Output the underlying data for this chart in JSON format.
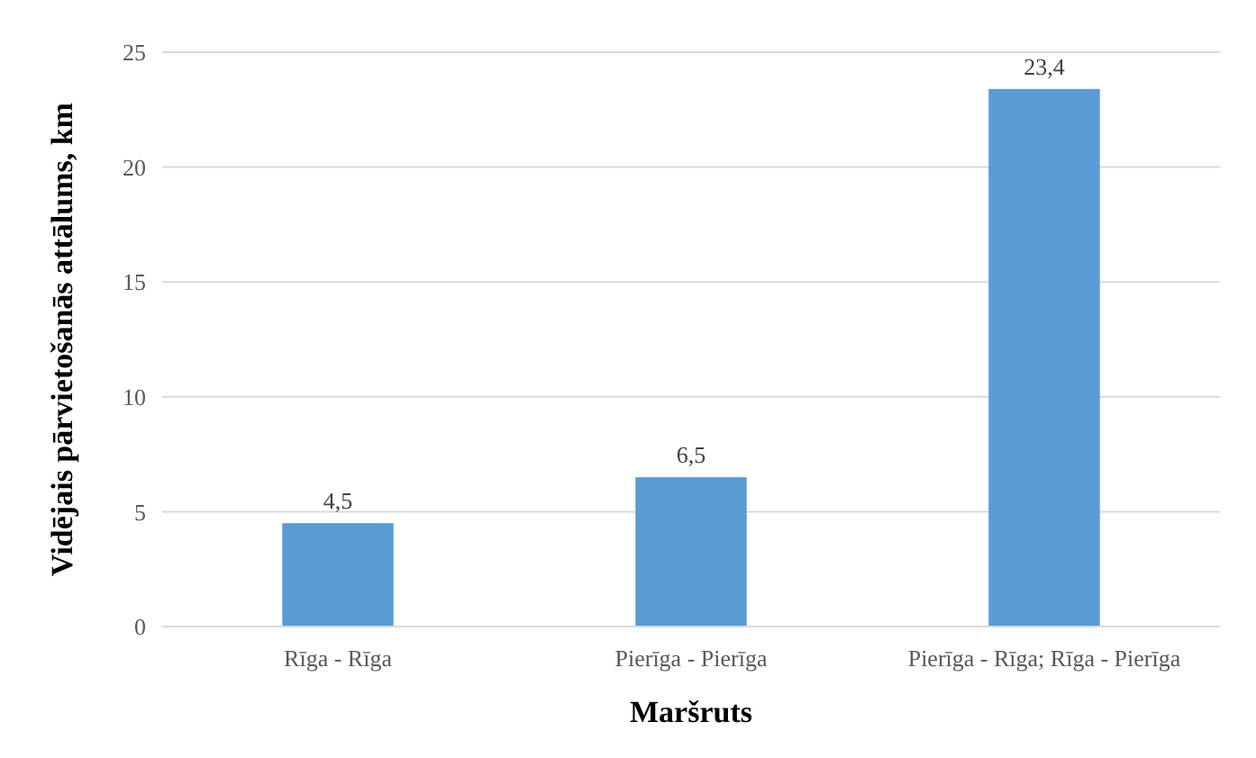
{
  "chart_data": {
    "type": "bar",
    "xlabel": "Maršruts",
    "ylabel": "Vidējais pārvietošanās attālums, km",
    "categories": [
      "Rīga - Rīga",
      "Pierīga - Pierīga",
      "Pierīga - Rīga; Rīga - Pierīga"
    ],
    "values": [
      4.5,
      6.5,
      23.4
    ],
    "value_labels": [
      "4,5",
      "6,5",
      "23,4"
    ],
    "color": "#5b9bd5",
    "ylim": [
      0,
      25
    ],
    "yticks": [
      0,
      5,
      10,
      15,
      20,
      25
    ],
    "grid": "y"
  }
}
